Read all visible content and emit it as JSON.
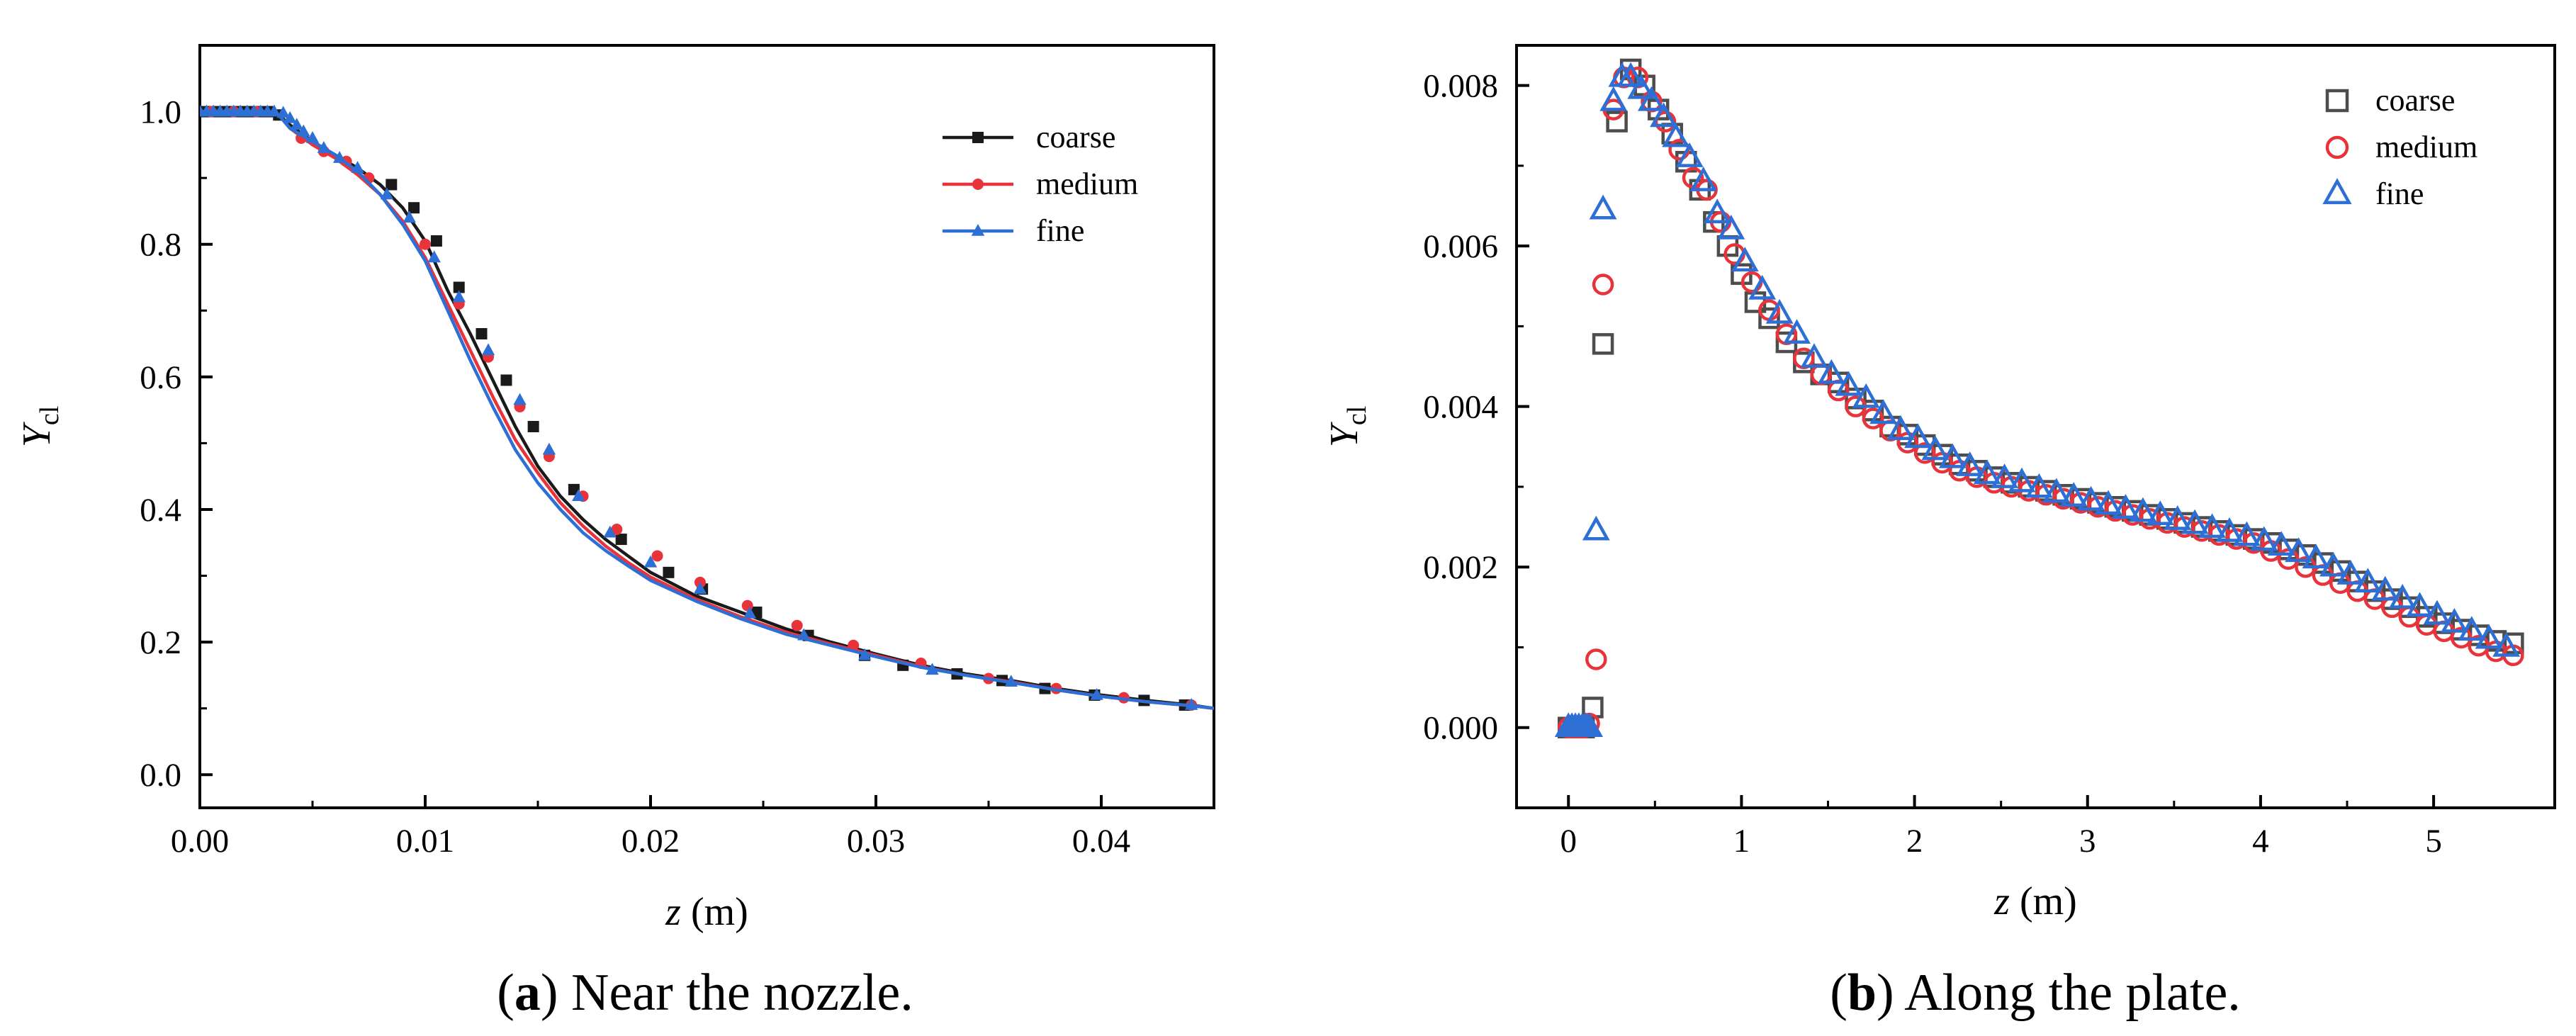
{
  "chart_data": [
    {
      "type": "line",
      "caption_letter": "a",
      "caption_text": ") Near the nozzle.",
      "xlabel": "z",
      "xlabel_unit": " (m)",
      "ylabel": "Y",
      "ylabel_sub": "cl",
      "xlim": [
        0,
        0.045
      ],
      "ylim": [
        -0.05,
        1.1
      ],
      "xticks": [
        0.0,
        0.01,
        0.02,
        0.03,
        0.04
      ],
      "xtick_labels": [
        "0.00",
        "0.01",
        "0.02",
        "0.03",
        "0.04"
      ],
      "yticks": [
        0.0,
        0.2,
        0.4,
        0.6,
        0.8,
        1.0
      ],
      "ytick_labels": [
        "0.0",
        "0.2",
        "0.4",
        "0.6",
        "0.8",
        "1.0"
      ],
      "legend_position": "top-right",
      "series": [
        {
          "name": "coarse",
          "color": "#1a1a1a",
          "marker": "square",
          "x": [
            0.0,
            0.001,
            0.002,
            0.003,
            0.0035,
            0.004,
            0.005,
            0.006,
            0.007,
            0.008,
            0.009,
            0.01,
            0.011,
            0.012,
            0.013,
            0.014,
            0.015,
            0.016,
            0.017,
            0.018,
            0.019,
            0.02,
            0.022,
            0.024,
            0.026,
            0.028,
            0.03,
            0.032,
            0.034,
            0.036,
            0.038,
            0.04,
            0.042,
            0.044,
            0.045
          ],
          "y": [
            1.0,
            1.0,
            1.0,
            1.0,
            0.995,
            0.98,
            0.955,
            0.935,
            0.915,
            0.89,
            0.855,
            0.805,
            0.73,
            0.665,
            0.595,
            0.525,
            0.465,
            0.42,
            0.385,
            0.355,
            0.33,
            0.305,
            0.27,
            0.245,
            0.22,
            0.2,
            0.182,
            0.165,
            0.152,
            0.142,
            0.13,
            0.12,
            0.112,
            0.105,
            0.1
          ],
          "marker_x": [
            0.0,
            0.0005,
            0.001,
            0.0015,
            0.002,
            0.0025,
            0.003,
            0.0035,
            0.0085,
            0.0095,
            0.0105,
            0.0115,
            0.0125,
            0.0136,
            0.0148,
            0.0166,
            0.0187,
            0.0208,
            0.0223,
            0.0247,
            0.027,
            0.0295,
            0.0312,
            0.0336,
            0.0356,
            0.0375,
            0.0397,
            0.0419,
            0.0437
          ],
          "marker_y": [
            1.0,
            1.0,
            1.0,
            1.0,
            1.0,
            1.0,
            1.0,
            0.995,
            0.89,
            0.855,
            0.805,
            0.735,
            0.665,
            0.595,
            0.525,
            0.43,
            0.355,
            0.305,
            0.28,
            0.245,
            0.21,
            0.18,
            0.165,
            0.152,
            0.142,
            0.13,
            0.12,
            0.112,
            0.105
          ]
        },
        {
          "name": "medium",
          "color": "#e8333a",
          "marker": "circle",
          "x": [
            0.0,
            0.001,
            0.002,
            0.003,
            0.0035,
            0.004,
            0.005,
            0.006,
            0.007,
            0.008,
            0.009,
            0.01,
            0.011,
            0.012,
            0.013,
            0.014,
            0.015,
            0.016,
            0.017,
            0.018,
            0.019,
            0.02,
            0.022,
            0.024,
            0.026,
            0.028,
            0.03,
            0.032,
            0.034,
            0.036,
            0.038,
            0.04,
            0.042,
            0.044,
            0.045
          ],
          "y": [
            1.0,
            1.0,
            1.0,
            1.0,
            0.995,
            0.975,
            0.95,
            0.93,
            0.905,
            0.875,
            0.835,
            0.78,
            0.71,
            0.64,
            0.57,
            0.505,
            0.455,
            0.41,
            0.375,
            0.345,
            0.32,
            0.298,
            0.265,
            0.238,
            0.215,
            0.197,
            0.18,
            0.163,
            0.15,
            0.14,
            0.128,
            0.118,
            0.11,
            0.104,
            0.1
          ],
          "marker_x": [
            0.0005,
            0.0015,
            0.0025,
            0.0045,
            0.0055,
            0.0065,
            0.0075,
            0.01,
            0.0115,
            0.0128,
            0.0142,
            0.0155,
            0.017,
            0.0185,
            0.0203,
            0.0222,
            0.0243,
            0.0265,
            0.029,
            0.032,
            0.035,
            0.038,
            0.041,
            0.044
          ],
          "marker_y": [
            1.0,
            1.0,
            1.0,
            0.96,
            0.94,
            0.925,
            0.9,
            0.8,
            0.71,
            0.63,
            0.555,
            0.48,
            0.42,
            0.37,
            0.33,
            0.29,
            0.255,
            0.225,
            0.195,
            0.168,
            0.145,
            0.13,
            0.116,
            0.105
          ]
        },
        {
          "name": "fine",
          "color": "#2e6fd6",
          "marker": "triangle",
          "x": [
            0.0,
            0.001,
            0.002,
            0.003,
            0.0035,
            0.004,
            0.005,
            0.006,
            0.007,
            0.008,
            0.009,
            0.01,
            0.011,
            0.012,
            0.013,
            0.014,
            0.015,
            0.016,
            0.017,
            0.018,
            0.019,
            0.02,
            0.022,
            0.024,
            0.026,
            0.028,
            0.03,
            0.032,
            0.034,
            0.036,
            0.038,
            0.04,
            0.042,
            0.044,
            0.045
          ],
          "y": [
            1.0,
            1.0,
            1.0,
            1.0,
            0.995,
            0.975,
            0.955,
            0.935,
            0.91,
            0.875,
            0.83,
            0.775,
            0.7,
            0.625,
            0.555,
            0.49,
            0.44,
            0.4,
            0.365,
            0.338,
            0.315,
            0.293,
            0.262,
            0.235,
            0.212,
            0.195,
            0.178,
            0.162,
            0.15,
            0.139,
            0.128,
            0.118,
            0.11,
            0.104,
            0.1
          ],
          "marker_x": [
            0.0,
            0.0003,
            0.0006,
            0.0009,
            0.0012,
            0.0015,
            0.0018,
            0.0021,
            0.0024,
            0.0027,
            0.003,
            0.0033,
            0.0037,
            0.004,
            0.0043,
            0.0046,
            0.005,
            0.0055,
            0.0062,
            0.007,
            0.0083,
            0.0093,
            0.0104,
            0.0115,
            0.0128,
            0.0142,
            0.0155,
            0.0168,
            0.0182,
            0.02,
            0.0222,
            0.0244,
            0.0268,
            0.0295,
            0.0325,
            0.036,
            0.0398,
            0.044
          ],
          "marker_y": [
            1.0,
            1.0,
            1.0,
            1.0,
            1.0,
            1.0,
            1.0,
            1.0,
            1.0,
            1.0,
            1.0,
            1.0,
            0.998,
            0.99,
            0.98,
            0.97,
            0.96,
            0.945,
            0.93,
            0.915,
            0.875,
            0.84,
            0.78,
            0.72,
            0.64,
            0.565,
            0.49,
            0.42,
            0.365,
            0.32,
            0.28,
            0.243,
            0.21,
            0.18,
            0.158,
            0.14,
            0.12,
            0.105
          ]
        }
      ]
    },
    {
      "type": "scatter",
      "caption_letter": "b",
      "caption_text": ") Along the plate.",
      "xlabel": "z",
      "xlabel_unit": " (m)",
      "ylabel": "Y",
      "ylabel_sub": "cl",
      "xlim": [
        -0.3,
        5.7
      ],
      "ylim": [
        -0.001,
        0.0085
      ],
      "xticks": [
        0,
        1,
        2,
        3,
        4,
        5
      ],
      "xtick_labels": [
        "0",
        "1",
        "2",
        "3",
        "4",
        "5"
      ],
      "yticks": [
        0.0,
        0.002,
        0.004,
        0.006,
        0.008
      ],
      "ytick_labels": [
        "0.000",
        "0.002",
        "0.004",
        "0.006",
        "0.008"
      ],
      "legend_position": "top-right",
      "series": [
        {
          "name": "coarse",
          "color": "#4d4d4d",
          "marker": "square-open",
          "x": [
            0.0,
            0.03,
            0.06,
            0.09,
            0.14,
            0.2,
            0.28,
            0.36,
            0.44,
            0.52,
            0.6,
            0.68,
            0.76,
            0.84,
            0.92,
            1.0,
            1.08,
            1.16,
            1.26,
            1.36,
            1.46,
            1.56,
            1.66,
            1.76,
            1.86,
            1.96,
            2.06,
            2.16,
            2.26,
            2.36,
            2.46,
            2.56,
            2.66,
            2.76,
            2.86,
            2.96,
            3.06,
            3.16,
            3.26,
            3.36,
            3.46,
            3.56,
            3.66,
            3.76,
            3.86,
            3.96,
            4.06,
            4.16,
            4.26,
            4.36,
            4.46,
            4.56,
            4.66,
            4.76,
            4.86,
            4.96,
            5.06,
            5.16,
            5.26,
            5.36,
            5.46
          ],
          "y": [
            0.0,
            0.0,
            0.0,
            0.0,
            0.00025,
            0.00478,
            0.00755,
            0.0082,
            0.008,
            0.0077,
            0.0074,
            0.00705,
            0.0067,
            0.0063,
            0.006,
            0.00565,
            0.0053,
            0.0051,
            0.0048,
            0.00455,
            0.0044,
            0.0043,
            0.0041,
            0.00395,
            0.00375,
            0.00365,
            0.00352,
            0.0034,
            0.00328,
            0.0032,
            0.00312,
            0.00305,
            0.003,
            0.00295,
            0.0029,
            0.00285,
            0.0028,
            0.00275,
            0.0027,
            0.00265,
            0.0026,
            0.00255,
            0.0025,
            0.00245,
            0.0024,
            0.00235,
            0.0023,
            0.00222,
            0.00215,
            0.00205,
            0.00195,
            0.00182,
            0.0017,
            0.0016,
            0.0015,
            0.00138,
            0.0013,
            0.00122,
            0.00115,
            0.00108,
            0.00105
          ]
        },
        {
          "name": "medium",
          "color": "#e8333a",
          "marker": "circle-open",
          "x": [
            0.0,
            0.03,
            0.06,
            0.09,
            0.12,
            0.16,
            0.2,
            0.26,
            0.32,
            0.4,
            0.48,
            0.56,
            0.64,
            0.72,
            0.8,
            0.88,
            0.96,
            1.06,
            1.16,
            1.26,
            1.36,
            1.46,
            1.56,
            1.66,
            1.76,
            1.86,
            1.96,
            2.06,
            2.16,
            2.26,
            2.36,
            2.46,
            2.56,
            2.66,
            2.76,
            2.86,
            2.96,
            3.06,
            3.16,
            3.26,
            3.36,
            3.46,
            3.56,
            3.66,
            3.76,
            3.86,
            3.96,
            4.06,
            4.16,
            4.26,
            4.36,
            4.46,
            4.56,
            4.66,
            4.76,
            4.86,
            4.96,
            5.06,
            5.16,
            5.26,
            5.36,
            5.46
          ],
          "y": [
            0.0,
            0.0,
            0.0,
            0.0,
            5e-05,
            0.00085,
            0.00552,
            0.0077,
            0.0081,
            0.0081,
            0.0078,
            0.00755,
            0.0072,
            0.00685,
            0.0067,
            0.0063,
            0.0059,
            0.00555,
            0.0052,
            0.0049,
            0.0046,
            0.0044,
            0.0042,
            0.004,
            0.00385,
            0.0037,
            0.00355,
            0.00342,
            0.0033,
            0.0032,
            0.00312,
            0.00305,
            0.003,
            0.00295,
            0.0029,
            0.00285,
            0.0028,
            0.00275,
            0.0027,
            0.00265,
            0.0026,
            0.00255,
            0.0025,
            0.00245,
            0.0024,
            0.00235,
            0.0023,
            0.0022,
            0.0021,
            0.002,
            0.0019,
            0.0018,
            0.0017,
            0.0016,
            0.0015,
            0.00138,
            0.00128,
            0.0012,
            0.00112,
            0.00102,
            0.00095,
            0.0009
          ]
        },
        {
          "name": "fine",
          "color": "#2e6fd6",
          "marker": "triangle-open",
          "x": [
            0.0,
            0.02,
            0.04,
            0.06,
            0.08,
            0.1,
            0.12,
            0.16,
            0.2,
            0.26,
            0.31,
            0.36,
            0.42,
            0.48,
            0.55,
            0.62,
            0.7,
            0.78,
            0.86,
            0.94,
            1.02,
            1.12,
            1.22,
            1.32,
            1.42,
            1.52,
            1.62,
            1.72,
            1.82,
            1.92,
            2.02,
            2.12,
            2.22,
            2.32,
            2.42,
            2.52,
            2.62,
            2.72,
            2.82,
            2.92,
            3.02,
            3.12,
            3.22,
            3.32,
            3.42,
            3.52,
            3.62,
            3.72,
            3.82,
            3.92,
            4.02,
            4.12,
            4.22,
            4.32,
            4.42,
            4.52,
            4.62,
            4.72,
            4.82,
            4.92,
            5.02,
            5.12,
            5.22,
            5.32,
            5.42
          ],
          "y": [
            0.0,
            0.0,
            0.0,
            0.0,
            0.0,
            0.0,
            0.0,
            0.00245,
            0.00645,
            0.0078,
            0.0081,
            0.0081,
            0.00795,
            0.0078,
            0.0076,
            0.00735,
            0.0071,
            0.0068,
            0.0064,
            0.0062,
            0.0058,
            0.00545,
            0.00515,
            0.0049,
            0.0046,
            0.0044,
            0.00425,
            0.0041,
            0.0039,
            0.0037,
            0.0036,
            0.00345,
            0.00335,
            0.00325,
            0.00315,
            0.0031,
            0.00305,
            0.00298,
            0.00292,
            0.00287,
            0.00282,
            0.00277,
            0.00272,
            0.00268,
            0.00264,
            0.00258,
            0.00253,
            0.00248,
            0.00243,
            0.00238,
            0.00232,
            0.00226,
            0.00218,
            0.0021,
            0.002,
            0.0019,
            0.0018,
            0.0017,
            0.0016,
            0.0015,
            0.0014,
            0.0013,
            0.0012,
            0.0011,
            0.001
          ]
        }
      ]
    }
  ]
}
